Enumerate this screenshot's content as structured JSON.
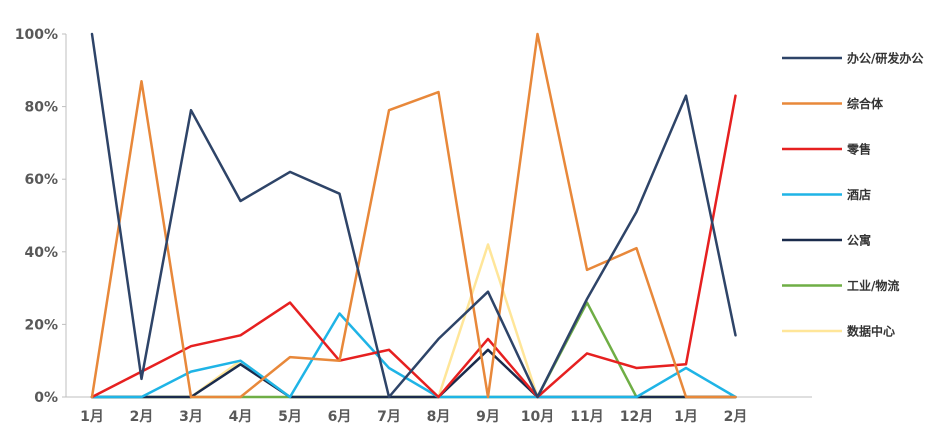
{
  "chart_data": {
    "type": "line",
    "title": "",
    "xlabel": "",
    "ylabel": "",
    "categories": [
      "1月",
      "2月",
      "3月",
      "4月",
      "5月",
      "6月",
      "7月",
      "8月",
      "9月",
      "10月",
      "11月",
      "12月",
      "1月",
      "2月"
    ],
    "y_ticks": [
      "0%",
      "20%",
      "40%",
      "60%",
      "80%",
      "100%"
    ],
    "ylim": [
      0,
      100
    ],
    "y_unit": "%",
    "grid": false,
    "legend_position": "right",
    "series": [
      {
        "name": "办公/研发办公",
        "color": "#2E4468",
        "values": [
          100,
          5,
          79,
          54,
          62,
          56,
          0,
          16,
          29,
          0,
          27,
          51,
          83,
          17
        ]
      },
      {
        "name": "综合体",
        "color": "#E8883A",
        "values": [
          0,
          87,
          0,
          0,
          11,
          10,
          79,
          84,
          0,
          100,
          35,
          41,
          0,
          0
        ]
      },
      {
        "name": "零售",
        "color": "#E62020",
        "values": [
          0,
          7,
          14,
          17,
          26,
          10,
          13,
          0,
          16,
          0,
          12,
          8,
          9,
          83
        ]
      },
      {
        "name": "酒店",
        "color": "#1FB4E6",
        "values": [
          0,
          0,
          7,
          10,
          0,
          23,
          8,
          0,
          0,
          0,
          0,
          0,
          8,
          0
        ]
      },
      {
        "name": "公寓",
        "color": "#1A2B4C",
        "values": [
          0,
          0,
          0,
          9,
          0,
          0,
          0,
          0,
          13,
          0,
          0,
          0,
          0,
          0
        ]
      },
      {
        "name": "工业/物流",
        "color": "#6FAE45",
        "values": [
          0,
          0,
          0,
          0,
          0,
          0,
          0,
          0,
          0,
          0,
          26,
          0,
          0,
          0
        ]
      },
      {
        "name": "数据中心",
        "color": "#FFE699",
        "values": [
          0,
          0,
          0,
          10,
          0,
          0,
          0,
          0,
          42,
          0,
          0,
          0,
          0,
          0
        ]
      }
    ]
  }
}
